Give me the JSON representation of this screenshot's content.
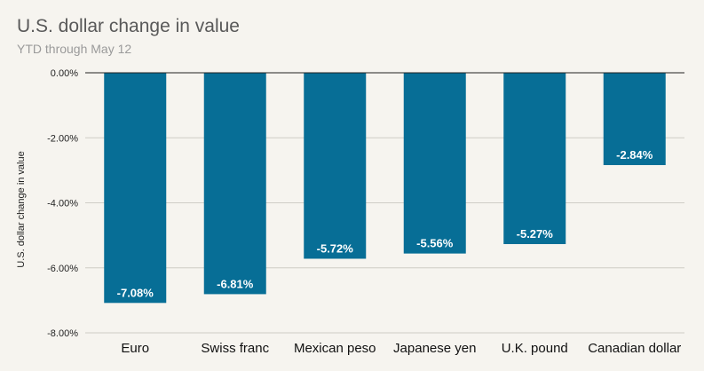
{
  "chart_data": {
    "type": "bar",
    "title": "U.S. dollar change in value",
    "subtitle": "YTD through May 12",
    "ylabel": "U.S. dollar change in value",
    "xlabel": "",
    "categories": [
      "Euro",
      "Swiss franc",
      "Mexican peso",
      "Japanese yen",
      "U.K. pound",
      "Canadian dollar"
    ],
    "values": [
      -7.08,
      -6.81,
      -5.72,
      -5.56,
      -5.27,
      -2.84
    ],
    "data_labels": [
      "-7.08%",
      "-6.81%",
      "-5.72%",
      "-5.56%",
      "-5.27%",
      "-2.84%"
    ],
    "yticks": [
      0,
      -2,
      -4,
      -6,
      -8
    ],
    "ytick_labels": [
      "0.00%",
      "-2.00%",
      "-4.00%",
      "-6.00%",
      "-8.00%"
    ],
    "ylim": [
      -8,
      0
    ],
    "grid": true,
    "bar_color": "#076e96",
    "legend": "none"
  }
}
